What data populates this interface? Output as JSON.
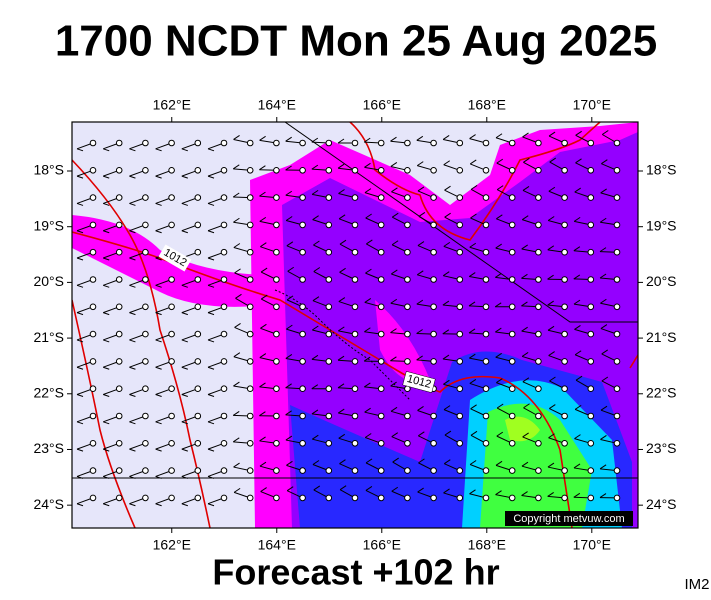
{
  "header": {
    "title": "1700 NCDT Mon 25 Aug 2025"
  },
  "map": {
    "lon_axis": {
      "range": [
        160.1,
        170.88
      ],
      "ticks": [
        {
          "value": 162,
          "label": "162°E"
        },
        {
          "value": 164,
          "label": "164°E"
        },
        {
          "value": 166,
          "label": "166°E"
        },
        {
          "value": 168,
          "label": "168°E"
        },
        {
          "value": 170,
          "label": "170°E"
        }
      ]
    },
    "lat_axis": {
      "range": [
        17.12,
        24.41
      ],
      "ticks": [
        {
          "value": 18,
          "label": "18°S"
        },
        {
          "value": 19,
          "label": "19°S"
        },
        {
          "value": 20,
          "label": "20°S"
        },
        {
          "value": 21,
          "label": "21°S"
        },
        {
          "value": 22,
          "label": "22°S"
        },
        {
          "value": 23,
          "label": "23°S"
        },
        {
          "value": 24,
          "label": "24°S"
        }
      ]
    },
    "isobar_labels": [
      "1012",
      "1012"
    ],
    "copyright": "Copyright metvuw.com"
  },
  "footer": {
    "caption": "Forecast +102 hr",
    "code": "IM2"
  }
}
